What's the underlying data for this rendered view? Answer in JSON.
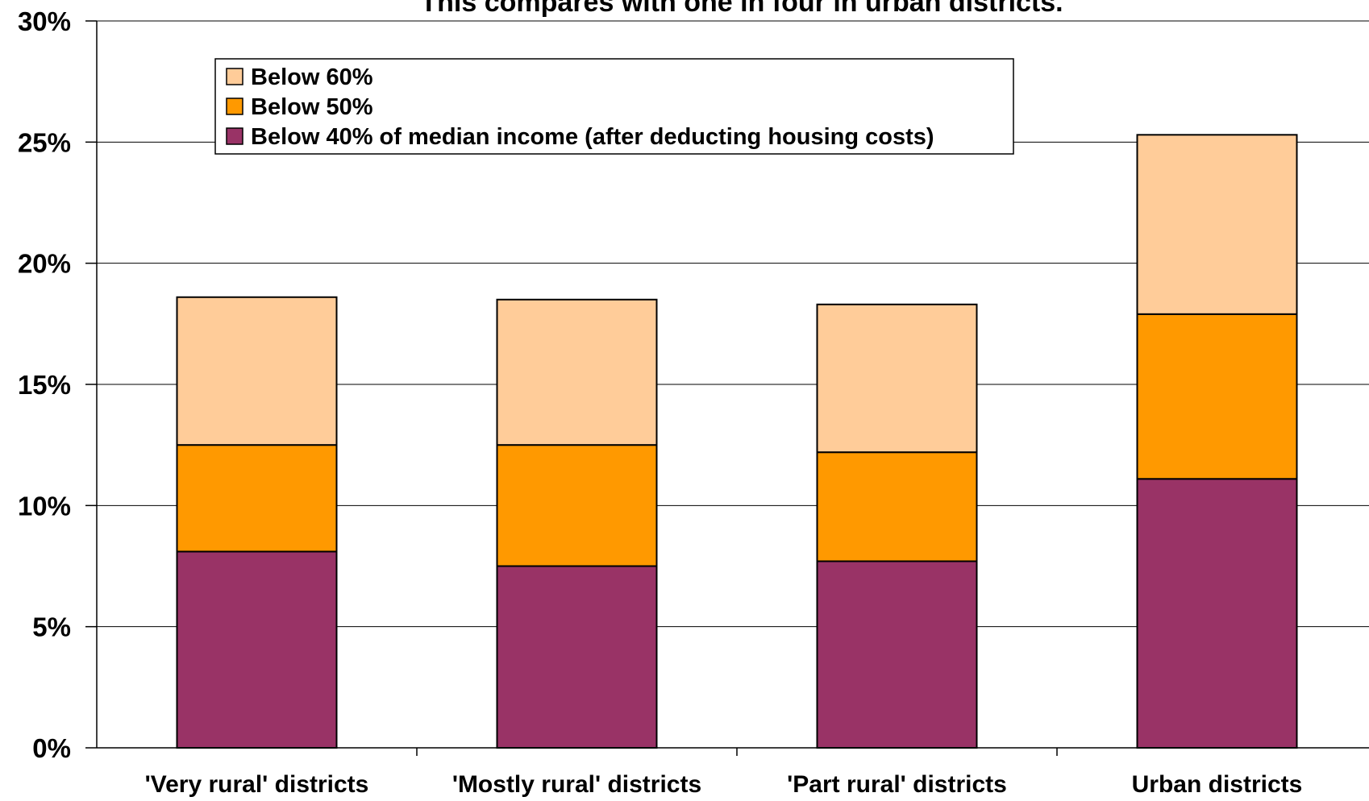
{
  "chart_data": {
    "type": "bar",
    "stacked": true,
    "title": "This compares with one in four in urban districts.",
    "xlabel": "",
    "ylabel": "",
    "categories": [
      "'Very rural' districts",
      "'Mostly rural' districts",
      "'Part rural' districts",
      "Urban districts"
    ],
    "series": [
      {
        "name": "Below 40% of median income (after deducting housing costs)",
        "color": "#993366",
        "values": [
          8.1,
          7.5,
          7.7,
          11.1
        ]
      },
      {
        "name": "Below 50%",
        "color": "#FF9900",
        "values": [
          4.4,
          5.0,
          4.5,
          6.8
        ]
      },
      {
        "name": "Below 60%",
        "color": "#FFCC99",
        "values": [
          6.1,
          6.0,
          6.1,
          7.4
        ]
      }
    ],
    "legend_order": [
      2,
      1,
      0
    ],
    "legend_position": "top-left",
    "ylim": [
      0,
      30
    ],
    "yticks": [
      0,
      5,
      10,
      15,
      20,
      25,
      30
    ],
    "ytick_labels": [
      "0%",
      "5%",
      "10%",
      "15%",
      "20%",
      "25%",
      "30%"
    ],
    "grid": true
  }
}
